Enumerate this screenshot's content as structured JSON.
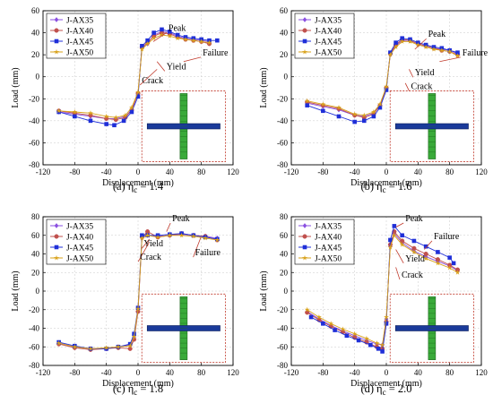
{
  "chart_data": [
    {
      "type": "line",
      "caption_label": "(a)",
      "caption_text": "η",
      "caption_sub": "c",
      "caption_value": " = 1.4",
      "xlabel": "Displacement (mm)",
      "ylabel": "Load (mm)",
      "xlim": [
        -120,
        120
      ],
      "ylim": [
        -80,
        60
      ],
      "xticks": [
        -120,
        -80,
        -40,
        0,
        40,
        80,
        120
      ],
      "yticks": [
        -80,
        -60,
        -40,
        -20,
        0,
        20,
        40,
        60
      ],
      "grid": true,
      "legend": "top-left",
      "annotations": [
        "Peak",
        "Failure",
        "Yield",
        "Crack"
      ],
      "series": [
        {
          "name": "J-AX35",
          "color": "#8a4fe0",
          "marker": "diamond",
          "x": [
            -100,
            -80,
            -60,
            -40,
            -28,
            -16,
            -8,
            0,
            5,
            12,
            20,
            30,
            40,
            50,
            60,
            70,
            80,
            90
          ],
          "y": [
            -32,
            -34,
            -36,
            -38,
            -38,
            -36,
            -30,
            -15,
            26,
            30,
            38,
            41,
            40,
            37,
            35,
            34,
            33,
            32
          ]
        },
        {
          "name": "J-AX40",
          "color": "#c0504d",
          "marker": "circle",
          "x": [
            -100,
            -80,
            -60,
            -40,
            -28,
            -16,
            -8,
            0,
            5,
            12,
            20,
            30,
            40,
            50,
            60,
            70,
            80,
            90
          ],
          "y": [
            -31,
            -33,
            -35,
            -38,
            -39,
            -37,
            -30,
            -15,
            27,
            31,
            37,
            40,
            39,
            36,
            34,
            33,
            32,
            30
          ]
        },
        {
          "name": "J-AX45",
          "color": "#1f2fd8",
          "marker": "square",
          "x": [
            -100,
            -80,
            -60,
            -40,
            -30,
            -18,
            -8,
            0,
            5,
            12,
            20,
            30,
            40,
            50,
            60,
            70,
            80,
            90,
            100
          ],
          "y": [
            -32,
            -36,
            -40,
            -43,
            -44,
            -40,
            -32,
            -18,
            28,
            33,
            40,
            43,
            41,
            38,
            36,
            35,
            34,
            33,
            33
          ]
        },
        {
          "name": "J-AX50",
          "color": "#d9a21a",
          "marker": "star",
          "x": [
            -100,
            -80,
            -60,
            -40,
            -28,
            -16,
            -8,
            0,
            5,
            12,
            20,
            30,
            40,
            50,
            60,
            70,
            80,
            90
          ],
          "y": [
            -31,
            -32,
            -33,
            -36,
            -37,
            -35,
            -28,
            -14,
            25,
            30,
            35,
            38,
            37,
            35,
            34,
            33,
            32,
            31
          ]
        }
      ]
    },
    {
      "type": "line",
      "caption_label": "(b)",
      "caption_text": "η",
      "caption_sub": "c",
      "caption_value": " = 1.6",
      "xlabel": "Displacement (mm)",
      "ylabel": "Load (mm)",
      "xlim": [
        -120,
        120
      ],
      "ylim": [
        -80,
        60
      ],
      "xticks": [
        -120,
        -80,
        -40,
        0,
        40,
        80,
        120
      ],
      "yticks": [
        -80,
        -60,
        -40,
        -20,
        0,
        20,
        40,
        60
      ],
      "grid": true,
      "legend": "top-left",
      "annotations": [
        "Peak",
        "Failure",
        "Yield",
        "Crack"
      ],
      "series": [
        {
          "name": "J-AX35",
          "color": "#8a4fe0",
          "marker": "diamond",
          "x": [
            -100,
            -80,
            -60,
            -40,
            -28,
            -16,
            -8,
            0,
            5,
            12,
            20,
            30,
            40,
            50,
            60,
            70,
            80,
            90
          ],
          "y": [
            -24,
            -27,
            -30,
            -35,
            -36,
            -33,
            -26,
            -10,
            20,
            28,
            33,
            33,
            30,
            28,
            26,
            25,
            24,
            21
          ]
        },
        {
          "name": "J-AX40",
          "color": "#c0504d",
          "marker": "circle",
          "x": [
            -100,
            -80,
            -60,
            -40,
            -28,
            -16,
            -8,
            0,
            5,
            12,
            20,
            30,
            40,
            50,
            60,
            70,
            80,
            90
          ],
          "y": [
            -23,
            -26,
            -29,
            -35,
            -37,
            -34,
            -26,
            -10,
            21,
            29,
            34,
            33,
            30,
            28,
            26,
            24,
            23,
            20
          ]
        },
        {
          "name": "J-AX45",
          "color": "#1f2fd8",
          "marker": "square",
          "x": [
            -100,
            -80,
            -60,
            -40,
            -28,
            -16,
            -8,
            0,
            5,
            12,
            20,
            30,
            40,
            50,
            60,
            70,
            80,
            90
          ],
          "y": [
            -26,
            -31,
            -36,
            -41,
            -40,
            -36,
            -28,
            -12,
            22,
            31,
            35,
            34,
            31,
            29,
            27,
            26,
            24,
            22
          ]
        },
        {
          "name": "J-AX50",
          "color": "#d9a21a",
          "marker": "star",
          "x": [
            -100,
            -80,
            -60,
            -40,
            -28,
            -16,
            -8,
            0,
            5,
            12,
            20,
            30,
            40,
            50,
            60,
            70,
            80,
            90
          ],
          "y": [
            -22,
            -25,
            -28,
            -34,
            -35,
            -32,
            -25,
            -9,
            20,
            27,
            32,
            32,
            29,
            27,
            25,
            24,
            23,
            19
          ]
        }
      ]
    },
    {
      "type": "line",
      "caption_label": "(c)",
      "caption_text": "η",
      "caption_sub": "c",
      "caption_value": " = 1.8",
      "xlabel": "Displacement (mm)",
      "ylabel": "Load (mm)",
      "xlim": [
        -120,
        120
      ],
      "ylim": [
        -80,
        80
      ],
      "xticks": [
        -120,
        -80,
        -40,
        0,
        40,
        80,
        120
      ],
      "yticks": [
        -80,
        -60,
        -40,
        -20,
        0,
        20,
        40,
        60,
        80
      ],
      "grid": true,
      "legend": "top-left",
      "annotations": [
        "Peak",
        "Failure",
        "Yield",
        "Crack"
      ],
      "series": [
        {
          "name": "J-AX35",
          "color": "#8a4fe0",
          "marker": "diamond",
          "x": [
            -100,
            -80,
            -60,
            -40,
            -25,
            -10,
            -5,
            0,
            5,
            12,
            25,
            40,
            55,
            70,
            85,
            100
          ],
          "y": [
            -56,
            -60,
            -62,
            -62,
            -60,
            -58,
            -50,
            -20,
            58,
            60,
            59,
            60,
            61,
            60,
            59,
            57
          ]
        },
        {
          "name": "J-AX40",
          "color": "#c0504d",
          "marker": "circle",
          "x": [
            -100,
            -80,
            -60,
            -40,
            -25,
            -10,
            -5,
            0,
            5,
            12,
            25,
            40,
            55,
            70,
            85,
            100
          ],
          "y": [
            -57,
            -61,
            -63,
            -62,
            -61,
            -62,
            -52,
            -22,
            58,
            64,
            58,
            60,
            62,
            60,
            59,
            55
          ]
        },
        {
          "name": "J-AX45",
          "color": "#1f2fd8",
          "marker": "square",
          "x": [
            -100,
            -80,
            -60,
            -40,
            -25,
            -10,
            -5,
            0,
            5,
            12,
            25,
            40,
            55,
            70,
            85,
            100
          ],
          "y": [
            -55,
            -59,
            -62,
            -62,
            -60,
            -57,
            -46,
            -18,
            60,
            60,
            60,
            61,
            62,
            60,
            58,
            56
          ]
        },
        {
          "name": "J-AX50",
          "color": "#d9a21a",
          "marker": "star",
          "x": [
            -100,
            -80,
            -60,
            -40,
            -25,
            -10,
            -5,
            0,
            5,
            12,
            25,
            40,
            55,
            70,
            85,
            100
          ],
          "y": [
            -56,
            -60,
            -62,
            -61,
            -60,
            -59,
            -49,
            -19,
            57,
            60,
            58,
            60,
            60,
            59,
            57,
            55
          ]
        }
      ]
    },
    {
      "type": "line",
      "caption_label": "(d)",
      "caption_text": "η",
      "caption_sub": "c",
      "caption_value": " = 2.0",
      "xlabel": "Displacement (mm)",
      "ylabel": "Load (mm)",
      "xlim": [
        -120,
        120
      ],
      "ylim": [
        -80,
        80
      ],
      "xticks": [
        -120,
        -80,
        -40,
        0,
        40,
        80,
        120
      ],
      "yticks": [
        -80,
        -60,
        -40,
        -20,
        0,
        20,
        40,
        60,
        80
      ],
      "grid": true,
      "legend": "top-left",
      "annotations": [
        "Peak",
        "Failure",
        "Yield",
        "Crack"
      ],
      "series": [
        {
          "name": "J-AX35",
          "color": "#8a4fe0",
          "marker": "diamond",
          "x": [
            -100,
            -85,
            -70,
            -55,
            -40,
            -25,
            -12,
            -5,
            0,
            5,
            10,
            20,
            35,
            50,
            65,
            80,
            90
          ],
          "y": [
            -22,
            -30,
            -37,
            -43,
            -48,
            -53,
            -57,
            -58,
            -30,
            48,
            62,
            52,
            43,
            37,
            32,
            27,
            22
          ]
        },
        {
          "name": "J-AX40",
          "color": "#c0504d",
          "marker": "circle",
          "x": [
            -100,
            -85,
            -70,
            -55,
            -40,
            -25,
            -12,
            -5,
            0,
            5,
            10,
            20,
            35,
            50,
            65,
            80,
            90
          ],
          "y": [
            -23,
            -31,
            -38,
            -44,
            -50,
            -55,
            -60,
            -62,
            -33,
            50,
            64,
            54,
            46,
            40,
            34,
            28,
            23
          ]
        },
        {
          "name": "J-AX45",
          "color": "#1f2fd8",
          "marker": "square",
          "x": [
            -95,
            -80,
            -65,
            -50,
            -35,
            -20,
            -10,
            -5,
            0,
            5,
            10,
            20,
            35,
            50,
            65,
            80,
            85
          ],
          "y": [
            -28,
            -35,
            -42,
            -48,
            -53,
            -58,
            -62,
            -65,
            -35,
            55,
            70,
            60,
            54,
            48,
            42,
            36,
            30
          ]
        },
        {
          "name": "J-AX50",
          "color": "#d9a21a",
          "marker": "star",
          "x": [
            -100,
            -85,
            -70,
            -55,
            -40,
            -25,
            -12,
            -5,
            0,
            5,
            10,
            20,
            35,
            50,
            65,
            80,
            90
          ],
          "y": [
            -20,
            -28,
            -35,
            -41,
            -46,
            -51,
            -56,
            -58,
            -28,
            47,
            60,
            50,
            42,
            35,
            30,
            25,
            20
          ]
        }
      ]
    }
  ]
}
